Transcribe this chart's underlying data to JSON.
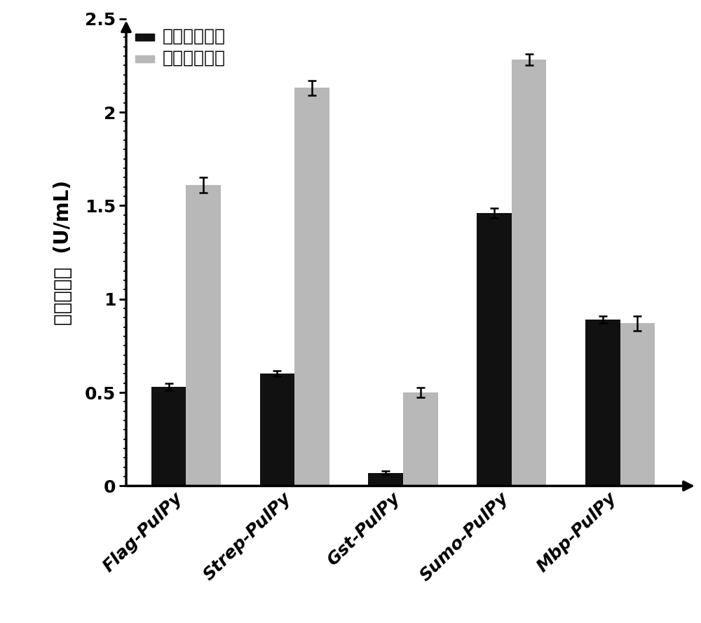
{
  "categories": [
    "Flag-PulPy",
    "Strep-PulPy",
    "Gst-PulPy",
    "Sumo-PulPy",
    "Mbp-PulPy"
  ],
  "supernatant_values": [
    0.53,
    0.6,
    0.07,
    1.46,
    0.89
  ],
  "supernatant_errors": [
    0.02,
    0.015,
    0.01,
    0.025,
    0.02
  ],
  "precipitate_values": [
    1.61,
    2.13,
    0.5,
    2.28,
    0.87
  ],
  "precipitate_errors": [
    0.04,
    0.04,
    0.025,
    0.03,
    0.04
  ],
  "supernatant_color": "#111111",
  "precipitate_color": "#b8b8b8",
  "ylabel_chinese": "普鲁兰酶活",
  "ylabel_unit": "(U/mL)",
  "legend_supernatant": "细胞破碎上清",
  "legend_precipitate": "细胞破碎沉淠",
  "ylim": [
    0,
    2.5
  ],
  "yticks": [
    0,
    0.5,
    1.0,
    1.5,
    2.0,
    2.5
  ],
  "bar_width": 0.32,
  "figsize": [
    10.0,
    8.89
  ],
  "dpi": 100,
  "background_color": "#ffffff",
  "label_fontsize": 20,
  "tick_fontsize": 18,
  "legend_fontsize": 18
}
